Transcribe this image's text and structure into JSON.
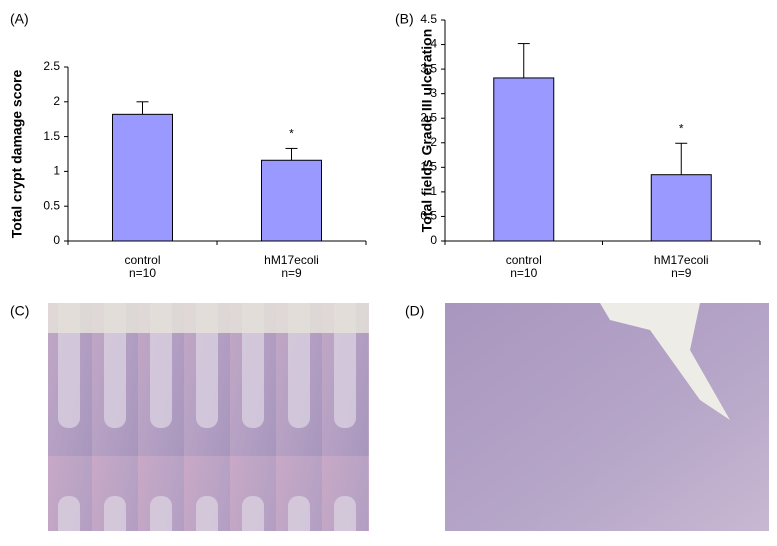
{
  "chart_data": [
    {
      "type": "bar",
      "panel_label": "(A)",
      "y_label": "Total crypt damage score",
      "categories": [
        "control",
        "hM17ecoli"
      ],
      "sample_sizes": [
        "n=10",
        "n=9"
      ],
      "values": [
        1.82,
        1.16
      ],
      "errors": [
        0.18,
        0.17
      ],
      "significance": [
        null,
        "*"
      ],
      "color": "#9999ff",
      "ylim": [
        0,
        2.5
      ],
      "yticks": [
        0,
        0.5,
        1,
        1.5,
        2,
        2.5
      ]
    },
    {
      "type": "bar",
      "panel_label": "(B)",
      "y_label": "Total fields Grade III ulceration",
      "categories": [
        "control",
        "hM17ecoli"
      ],
      "sample_sizes": [
        "n=10",
        "n=9"
      ],
      "values": [
        3.32,
        1.35
      ],
      "errors": [
        0.7,
        0.64
      ],
      "significance": [
        null,
        "*"
      ],
      "color": "#9999ff",
      "ylim": [
        0,
        4.5
      ],
      "yticks": [
        0,
        0.5,
        1,
        1.5,
        2,
        2.5,
        3,
        3.5,
        4,
        4.5
      ]
    }
  ],
  "images": [
    {
      "panel_label": "(C)"
    },
    {
      "panel_label": "(D)"
    }
  ]
}
